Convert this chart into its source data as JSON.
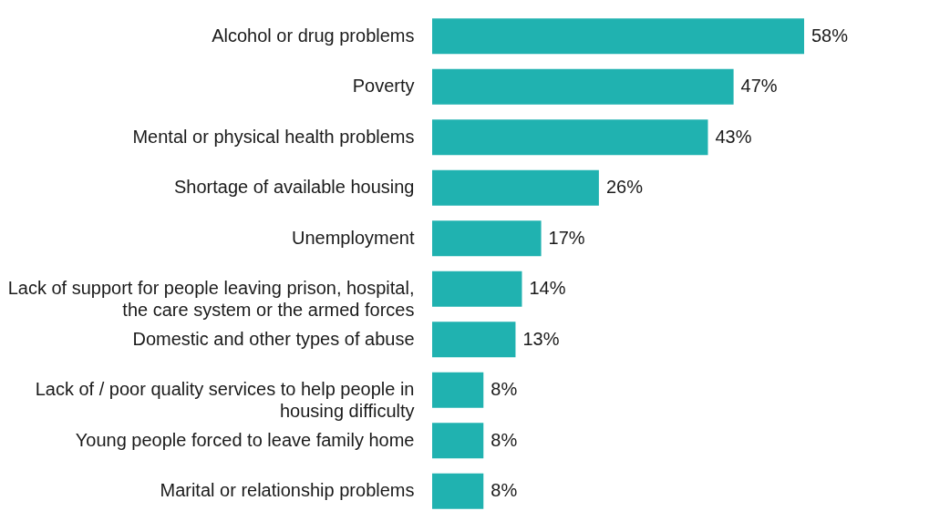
{
  "chart_data": {
    "type": "bar",
    "orientation": "horizontal",
    "categories": [
      "Alcohol or drug problems",
      "Poverty",
      "Mental or physical health problems",
      "Shortage of available housing",
      "Unemployment",
      "Lack of support for people leaving prison, hospital, the care system  or the armed forces",
      "Domestic and other types of abuse",
      "Lack of / poor quality services to help people in housing difficulty",
      "Young people forced to leave family home",
      "Marital or relationship problems"
    ],
    "values": [
      58,
      47,
      43,
      26,
      17,
      14,
      13,
      8,
      8,
      8
    ],
    "value_labels": [
      "58%",
      "47%",
      "43%",
      "26%",
      "17%",
      "14%",
      "13%",
      "8%",
      "8%",
      "8%"
    ],
    "color": "#20b2b0"
  }
}
